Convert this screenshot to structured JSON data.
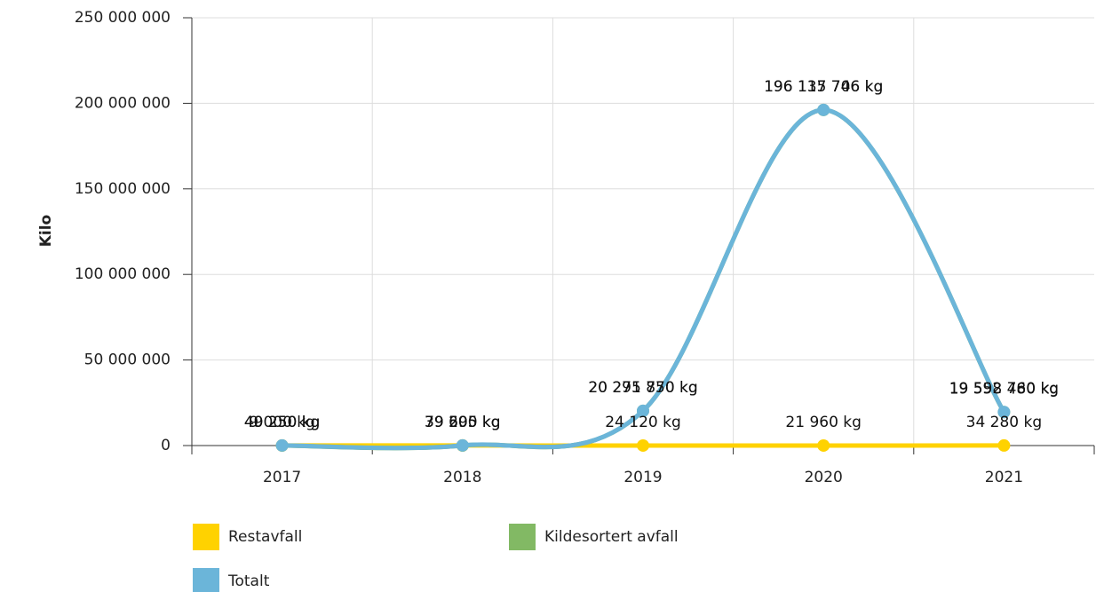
{
  "chart_data": {
    "type": "line",
    "y_label": "Kilo",
    "categories": [
      "2017",
      "2018",
      "2019",
      "2020",
      "2021"
    ],
    "series": [
      {
        "name": "Restavfall",
        "color": "#ffd200",
        "values": [
          40250,
          39695,
          24120,
          21960,
          34280
        ],
        "value_labels": [
          "40 250 kg",
          "39 695 kg",
          "24 120 kg",
          "21 960 kg",
          "34 280 kg"
        ]
      },
      {
        "name": "Kildesortert avfall",
        "color": "#82b964",
        "values": [
          9000,
          39505,
          20271750,
          196115746,
          19558480
        ],
        "value_labels": [
          "9 000 kg",
          "39 505 kg",
          "20 271 750 kg",
          "196 115 746 kg",
          "19 558 480 kg"
        ]
      },
      {
        "name": "Totalt",
        "color": "#6bb5d9",
        "values": [
          49250,
          79200,
          20295870,
          196137706,
          19592760
        ],
        "value_labels": [
          "49 250 kg",
          "79 200 kg",
          "20 295 870 kg",
          "196 137 706 kg",
          "19 592 760 kg"
        ]
      }
    ],
    "ylim": [
      0,
      250000000
    ],
    "yticks": [
      0,
      {
        "value": 50000000,
        "label": "50 000 000"
      },
      {
        "value": 100000000,
        "label": "100 000 000"
      },
      {
        "value": 150000000,
        "label": "150 000 000"
      },
      {
        "value": 200000000,
        "label": "200 000 000"
      },
      {
        "value": 250000000,
        "label": "250 000 000"
      }
    ],
    "grid": true,
    "smooth": true
  }
}
